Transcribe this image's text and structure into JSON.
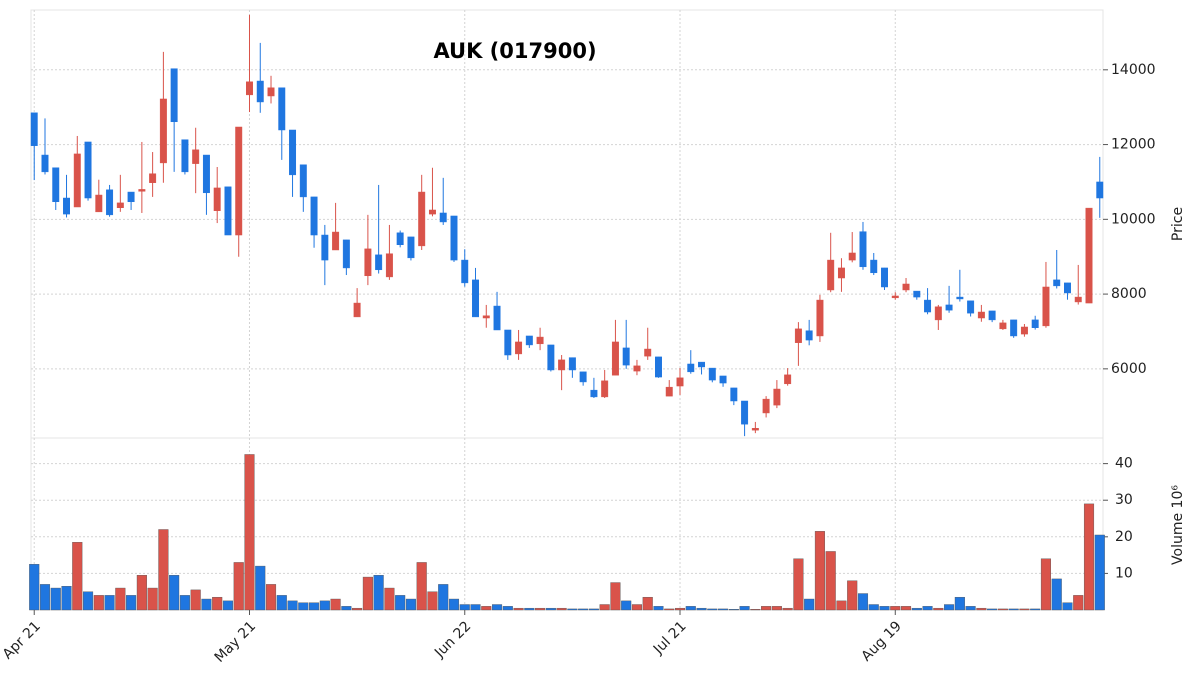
{
  "chart_data": {
    "type": "candlestick",
    "title": "AUK (017900)",
    "ylabel": "Price",
    "volume_label": "Volume  10⁶",
    "up_color": "#d9534a",
    "down_color": "#1f76e0",
    "grid": true,
    "xlim": [
      -0.3,
      99.3
    ],
    "xticks": [
      {
        "value": 0,
        "label": "Apr 21"
      },
      {
        "value": 20,
        "label": "May 21"
      },
      {
        "value": 40,
        "label": "Jun 22"
      },
      {
        "value": 60,
        "label": "Jul 21"
      },
      {
        "value": 80,
        "label": "Aug 19"
      }
    ],
    "ylim": [
      4150,
      15600
    ],
    "yticks": [
      6000,
      8000,
      10000,
      12000,
      14000
    ],
    "volume_ylim": [
      0,
      47
    ],
    "volume_yticks": [
      10,
      20,
      30,
      40
    ],
    "open": [
      12850,
      11720,
      11380,
      10570,
      10330,
      12070,
      10200,
      10790,
      10310,
      10730,
      10750,
      10980,
      11510,
      14030,
      12130,
      11490,
      11720,
      10230,
      10870,
      9580,
      13330,
      13700,
      13300,
      13520,
      12390,
      11460,
      10600,
      9580,
      9180,
      9450,
      7390,
      8490,
      9050,
      8460,
      9640,
      9530,
      9290,
      10140,
      10170,
      10090,
      8910,
      8380,
      7360,
      7680,
      7040,
      6400,
      6880,
      6670,
      6640,
      5970,
      6300,
      5920,
      5430,
      5250,
      5830,
      6560,
      5940,
      6340,
      6320,
      5270,
      5540,
      6130,
      6180,
      6020,
      5810,
      5490,
      5140,
      4360,
      4820,
      5030,
      5600,
      6700,
      7020,
      6880,
      8110,
      8430,
      8910,
      9670,
      8910,
      8700,
      7900,
      8110,
      8080,
      7840,
      7310,
      7710,
      7920,
      7820,
      7360,
      7550,
      7070,
      7310,
      6930,
      7310,
      7150,
      8380,
      8300,
      7790,
      7760,
      11000
    ],
    "high": [
      12850,
      12700,
      11380,
      11190,
      12230,
      12070,
      11060,
      10920,
      11190,
      10730,
      12070,
      11800,
      14480,
      14030,
      12130,
      12450,
      11720,
      11400,
      10870,
      12470,
      15470,
      14720,
      13840,
      13520,
      12390,
      11460,
      10600,
      9850,
      10440,
      9450,
      8160,
      10120,
      10920,
      9850,
      9700,
      9530,
      11190,
      11380,
      11110,
      10090,
      9200,
      8700,
      7710,
      8060,
      7040,
      7040,
      6880,
      7100,
      6640,
      6370,
      6300,
      5920,
      5760,
      5970,
      7310,
      7310,
      6240,
      7100,
      6320,
      5700,
      6020,
      6500,
      6180,
      6020,
      5810,
      5490,
      5140,
      4580,
      5270,
      5700,
      6020,
      7250,
      7310,
      7980,
      9640,
      8960,
      9660,
      9930,
      9100,
      8700,
      8050,
      8430,
      8080,
      8160,
      7710,
      8220,
      8650,
      7820,
      7710,
      7550,
      7310,
      7310,
      7200,
      7420,
      8860,
      9180,
      8300,
      8780,
      10300,
      11670
    ],
    "low": [
      11050,
      11200,
      10250,
      10050,
      10330,
      10500,
      10200,
      10070,
      10200,
      10250,
      10170,
      10600,
      10980,
      11270,
      11200,
      10700,
      10120,
      9900,
      9580,
      9000,
      12870,
      12850,
      13100,
      11590,
      10600,
      10200,
      9240,
      8240,
      9180,
      8510,
      7390,
      8240,
      8550,
      8380,
      9250,
      8900,
      9180,
      10080,
      9850,
      8860,
      8200,
      7390,
      7100,
      7040,
      6240,
      6240,
      6560,
      6500,
      5930,
      5430,
      5760,
      5550,
      5220,
      5220,
      5830,
      6000,
      5830,
      6240,
      5760,
      5270,
      5300,
      5870,
      5850,
      5640,
      5520,
      5030,
      4200,
      4280,
      4700,
      4950,
      5550,
      6080,
      6630,
      6720,
      8050,
      8060,
      8850,
      8650,
      8510,
      8110,
      7850,
      8050,
      7850,
      7460,
      7040,
      7500,
      7800,
      7400,
      7260,
      7250,
      7040,
      6830,
      6860,
      7050,
      7100,
      8150,
      7850,
      7720,
      7760,
      10040
    ],
    "close": [
      11970,
      11270,
      10470,
      10140,
      11750,
      10570,
      10650,
      10120,
      10440,
      10470,
      10800,
      11220,
      13220,
      12610,
      11270,
      11860,
      10710,
      10840,
      9580,
      12470,
      13680,
      13140,
      13520,
      12390,
      11190,
      10600,
      9580,
      8910,
      9660,
      8700,
      7760,
      9210,
      8650,
      9080,
      9320,
      8970,
      10730,
      10250,
      9930,
      8910,
      8300,
      7390,
      7420,
      7040,
      6370,
      6720,
      6640,
      6850,
      5970,
      6240,
      5970,
      5650,
      5250,
      5680,
      6720,
      6100,
      6080,
      6530,
      5780,
      5510,
      5760,
      5920,
      6050,
      5700,
      5620,
      5140,
      4520,
      4410,
      5190,
      5460,
      5840,
      7070,
      6770,
      7840,
      8910,
      8700,
      9100,
      8730,
      8570,
      8190,
      7950,
      8270,
      7920,
      7520,
      7660,
      7570,
      7870,
      7490,
      7520,
      7310,
      7230,
      6880,
      7120,
      7100,
      8190,
      8220,
      8030,
      7920,
      10300,
      10570
    ],
    "volume": [
      12.5,
      7,
      6,
      6.5,
      18.5,
      5,
      4,
      4,
      6,
      4,
      9.5,
      6,
      22,
      9.5,
      4,
      5.5,
      3,
      3.5,
      2.5,
      13,
      42.5,
      12,
      7,
      4,
      2.5,
      2,
      2,
      2.5,
      3,
      1,
      0.5,
      9,
      9.5,
      6,
      4,
      3,
      13,
      5,
      7,
      3,
      1.5,
      1.5,
      1,
      1.5,
      1,
      0.5,
      0.5,
      0.5,
      0.5,
      0.5,
      0.3,
      0.3,
      0.3,
      1.5,
      7.5,
      2.5,
      1.5,
      3.5,
      1,
      0.3,
      0.5,
      1,
      0.5,
      0.3,
      0.3,
      0.2,
      1,
      0.2,
      1,
      1,
      0.5,
      14,
      3,
      21.5,
      16,
      2.5,
      8,
      4.5,
      1.5,
      1,
      1,
      1,
      0.5,
      1,
      0.5,
      1.5,
      3.5,
      1,
      0.5,
      0.3,
      0.3,
      0.3,
      0.3,
      0.3,
      14,
      8.5,
      2,
      4,
      29,
      20.5
    ]
  }
}
